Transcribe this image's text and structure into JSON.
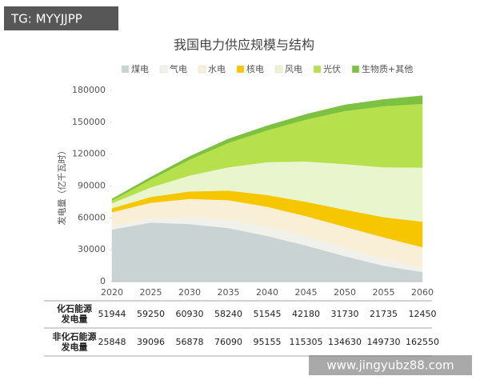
{
  "watermarks": [
    "TG: MYYJJPP",
    "www.jingyubz88.com"
  ],
  "chart_data": {
    "type": "stacked_area",
    "title": "我国电力供应规模与结构",
    "y_label": "发电量（亿千瓦时）",
    "categories": [
      "2020",
      "2025",
      "2030",
      "2035",
      "2040",
      "2045",
      "2050",
      "2055",
      "2060"
    ],
    "ylim": [
      0,
      180000
    ],
    "yticks": [
      0,
      30000,
      60000,
      90000,
      120000,
      150000,
      180000
    ],
    "legend": "top",
    "series": [
      {
        "name": "煤电",
        "color": "#c9d3d3",
        "values": [
          49000,
          55700,
          54200,
          50500,
          43000,
          34000,
          24000,
          15000,
          9000
        ]
      },
      {
        "name": "气电",
        "color": "#f1f1ec",
        "values": [
          2944,
          3550,
          6730,
          7740,
          8545,
          8180,
          7730,
          6735,
          3450
        ]
      },
      {
        "name": "水电",
        "color": "#f8efd6",
        "values": [
          13500,
          15000,
          17000,
          18500,
          19000,
          19500,
          20000,
          20000,
          20000
        ]
      },
      {
        "name": "核电",
        "color": "#f6c700",
        "values": [
          3700,
          5500,
          7000,
          9000,
          11000,
          13500,
          16000,
          19000,
          24000
        ]
      },
      {
        "name": "风电",
        "color": "#e9f5cc",
        "values": [
          4700,
          9000,
          15000,
          22000,
          31000,
          38000,
          43000,
          47000,
          51000
        ]
      },
      {
        "name": "光伏",
        "color": "#b6e04c",
        "values": [
          2600,
          7500,
          15000,
          23000,
          30000,
          39500,
          50000,
          57500,
          60000
        ]
      },
      {
        "name": "生物质+其他",
        "color": "#7cc142",
        "values": [
          1348,
          2096,
          2878,
          3590,
          4155,
          4805,
          5630,
          6230,
          7550
        ]
      }
    ]
  },
  "table": {
    "rows": [
      {
        "label": "化石能源\n发电量",
        "values": [
          51944,
          59250,
          60930,
          58240,
          51545,
          42180,
          31730,
          21735,
          12450
        ]
      },
      {
        "label": "非化石能源\n发电量",
        "values": [
          25848,
          39096,
          56878,
          76090,
          95155,
          115305,
          134630,
          149730,
          162550
        ]
      }
    ]
  }
}
